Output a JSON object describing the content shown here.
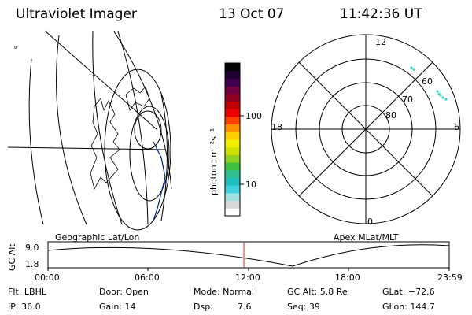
{
  "header": {
    "title": "Ultraviolet Imager",
    "date": "13 Oct 07",
    "time": "11:42:36 UT"
  },
  "left_map": {
    "label": "Geographic Lat/Lon",
    "orientation_glyph": "ﾟ"
  },
  "colorbar": {
    "unit_label": "photon cm⁻²s⁻¹",
    "tick_100": "100",
    "tick_10": "10",
    "colors": [
      "#ffffff",
      "#d8d8d8",
      "#a0e0e0",
      "#40d0e0",
      "#20c0c0",
      "#30c090",
      "#40c040",
      "#90d020",
      "#d0e000",
      "#f0f000",
      "#ffd000",
      "#ff9000",
      "#ff4000",
      "#ee0000",
      "#c00000",
      "#900020",
      "#700040",
      "#400050",
      "#200030",
      "#000000"
    ]
  },
  "polar": {
    "label": "Apex MLat/MLT",
    "mlt_top": "12",
    "mlt_bottom": "0",
    "mlt_left": "18",
    "mlt_right": "6",
    "lat_60": "60",
    "lat_70": "70",
    "lat_80": "80"
  },
  "gc_plot": {
    "ylabel": "GC Alt",
    "y_max": "9.0",
    "y_min": "1.8",
    "x_ticks": [
      "00:00",
      "06:00",
      "12:00",
      "18:00",
      "23:59"
    ]
  },
  "info": {
    "flt": "Flt: LBHL",
    "door": "Door: Open",
    "mode": "Mode: Normal",
    "gc_alt": "GC Alt: 5.8 Re",
    "glat": "GLat: −72.6",
    "ip": "IP: 36.0",
    "gain": "Gain: 14",
    "dsp": "Dsp:",
    "dsp_val": "7.6",
    "seq": "Seq: 39",
    "glon": "GLon: 144.7"
  }
}
